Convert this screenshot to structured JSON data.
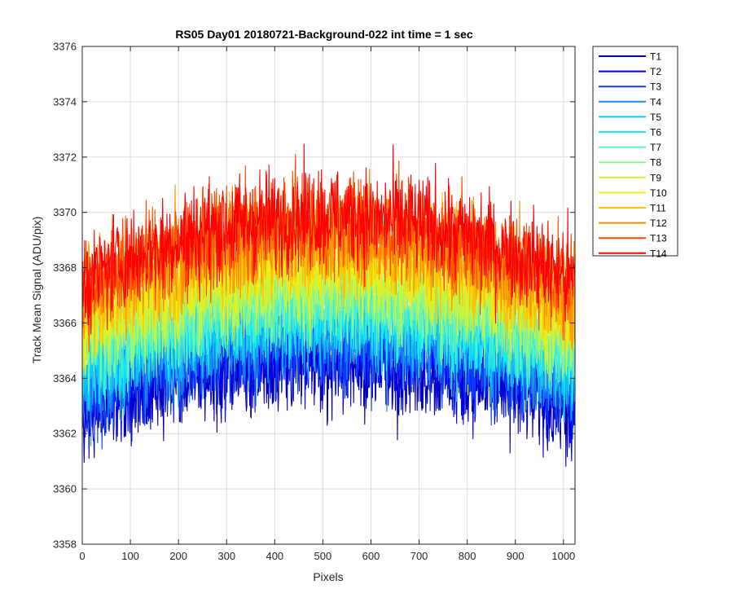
{
  "chart_data": {
    "type": "line",
    "title": "RS05 Day01 20180721-Background-022 int time = 1 sec",
    "xlabel": "Pixels",
    "ylabel": "Track Mean Signal (ADU/pix)",
    "xlim": [
      0,
      1024
    ],
    "ylim": [
      3358,
      3376
    ],
    "xticks": [
      "0",
      "100",
      "200",
      "300",
      "400",
      "500",
      "600",
      "700",
      "800",
      "900",
      "1000"
    ],
    "yticks": [
      "3358",
      "3360",
      "3362",
      "3364",
      "3366",
      "3368",
      "3370",
      "3372",
      "3374",
      "3376"
    ],
    "grid": true,
    "legend_position": "outside-top-right",
    "x_range_of_series": [
      1,
      1024
    ],
    "series": [
      {
        "name": "T1",
        "color": "#0000b0",
        "edge": 3362.8,
        "center": 3364.6,
        "noise": 0.9
      },
      {
        "name": "T2",
        "color": "#0000e6",
        "edge": 3363.1,
        "center": 3364.9,
        "noise": 0.9
      },
      {
        "name": "T3",
        "color": "#0a3cff",
        "edge": 3363.5,
        "center": 3365.3,
        "noise": 0.9
      },
      {
        "name": "T4",
        "color": "#1a8cff",
        "edge": 3363.9,
        "center": 3365.7,
        "noise": 0.9
      },
      {
        "name": "T5",
        "color": "#10c8f0",
        "edge": 3364.3,
        "center": 3366.1,
        "noise": 0.9
      },
      {
        "name": "T6",
        "color": "#18ecec",
        "edge": 3364.6,
        "center": 3366.5,
        "noise": 0.9
      },
      {
        "name": "T7",
        "color": "#5ef0c0",
        "edge": 3365.0,
        "center": 3366.9,
        "noise": 0.9
      },
      {
        "name": "T8",
        "color": "#8cf58c",
        "edge": 3365.4,
        "center": 3367.3,
        "noise": 0.9
      },
      {
        "name": "T9",
        "color": "#c8f53c",
        "edge": 3365.8,
        "center": 3367.7,
        "noise": 0.9
      },
      {
        "name": "T10",
        "color": "#f0ec14",
        "edge": 3366.2,
        "center": 3368.2,
        "noise": 0.9
      },
      {
        "name": "T11",
        "color": "#ffc000",
        "edge": 3366.6,
        "center": 3368.7,
        "noise": 0.9
      },
      {
        "name": "T12",
        "color": "#ff8c00",
        "edge": 3367.0,
        "center": 3369.2,
        "noise": 0.9
      },
      {
        "name": "T13",
        "color": "#ff4a00",
        "edge": 3367.3,
        "center": 3369.6,
        "noise": 0.9
      },
      {
        "name": "T14",
        "color": "#ff0000",
        "edge": 3367.5,
        "center": 3369.9,
        "noise": 0.9
      }
    ]
  }
}
